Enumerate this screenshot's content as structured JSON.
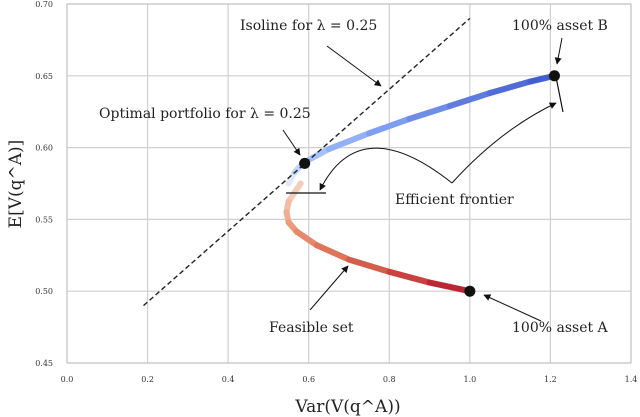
{
  "chart_data": {
    "type": "line",
    "xlabel": "Var(V(q^A))",
    "ylabel": "E[V(q^A)]",
    "xlim": [
      0.0,
      1.4
    ],
    "ylim": [
      0.45,
      0.7
    ],
    "grid": true,
    "xticks": [
      "0.0",
      "0.2",
      "0.4",
      "0.6",
      "0.8",
      "1.0",
      "1.2",
      "1.4"
    ],
    "yticks": [
      "0.45",
      "0.50",
      "0.55",
      "0.60",
      "0.65",
      "0.70"
    ],
    "series": [
      {
        "role": "feasible set (inefficient part)",
        "colors": [
          "#f5d4c4",
          "#efa585",
          "#dc6a52",
          "#b31a2c"
        ],
        "x": [
          0.58,
          0.55,
          0.545,
          0.55,
          0.57,
          0.62,
          0.7,
          0.8,
          0.9,
          1.0
        ],
        "y": [
          0.575,
          0.5625,
          0.555,
          0.548,
          0.5415,
          0.532,
          0.522,
          0.5135,
          0.506,
          0.5
        ]
      },
      {
        "role": "efficient frontier",
        "colors": [
          "#f0f0f5",
          "#a9c6f8",
          "#7d9ef2",
          "#5a78dd",
          "#3e55cc"
        ],
        "x": [
          0.55,
          0.565,
          0.59,
          0.65,
          0.75,
          0.85,
          0.95,
          1.05,
          1.15,
          1.21
        ],
        "y": [
          0.575,
          0.583,
          0.59,
          0.599,
          0.61,
          0.62,
          0.629,
          0.638,
          0.646,
          0.65
        ]
      },
      {
        "role": "isoline",
        "style": "dashed",
        "color": "#222222",
        "x": [
          0.19,
          1.0
        ],
        "y": [
          0.49,
          0.69
        ]
      }
    ],
    "points": [
      {
        "x": 0.59,
        "y": 0.589
      },
      {
        "x": 1.21,
        "y": 0.65
      },
      {
        "x": 1.0,
        "y": 0.5
      }
    ],
    "annotations": [
      {
        "key": "isoline",
        "text": "Isoline for λ = 0.25"
      },
      {
        "key": "asset_b",
        "text": "100% asset B"
      },
      {
        "key": "optimal",
        "text": "Optimal portfolio for λ = 0.25"
      },
      {
        "key": "frontier",
        "text": "Efficient frontier"
      },
      {
        "key": "feasible",
        "text": "Feasible set"
      },
      {
        "key": "asset_a",
        "text": "100% asset A"
      }
    ]
  }
}
